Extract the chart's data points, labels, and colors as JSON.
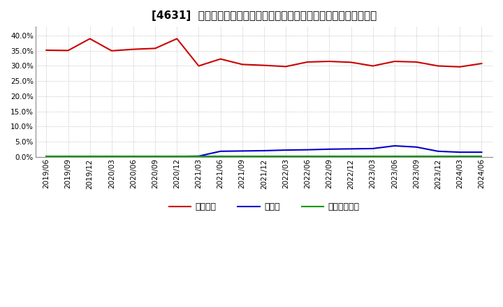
{
  "title": "[4631]  自己資本、のれん、繰延税金資産の総資産に対する比率の推移",
  "x_labels": [
    "2019/06",
    "2019/09",
    "2019/12",
    "2020/03",
    "2020/06",
    "2020/09",
    "2020/12",
    "2021/03",
    "2021/06",
    "2021/09",
    "2021/12",
    "2022/03",
    "2022/06",
    "2022/09",
    "2022/12",
    "2023/03",
    "2023/06",
    "2023/09",
    "2023/12",
    "2024/03",
    "2024/06"
  ],
  "jikoshihon": [
    35.2,
    35.1,
    39.0,
    35.0,
    35.5,
    35.8,
    39.0,
    30.0,
    32.3,
    30.5,
    30.2,
    29.8,
    31.3,
    31.5,
    31.2,
    30.0,
    31.5,
    31.3,
    30.0,
    29.7,
    30.8
  ],
  "noren": [
    0.1,
    0.1,
    0.1,
    0.1,
    0.1,
    0.1,
    0.1,
    0.2,
    1.8,
    1.9,
    2.0,
    2.2,
    2.3,
    2.5,
    2.6,
    2.7,
    3.6,
    3.2,
    1.8,
    1.5,
    1.5
  ],
  "kurinobezeikinsisan": [
    0.05,
    0.05,
    0.05,
    0.05,
    0.05,
    0.05,
    0.05,
    0.05,
    0.05,
    0.05,
    0.05,
    0.05,
    0.05,
    0.05,
    0.05,
    0.05,
    0.05,
    0.05,
    0.05,
    0.05,
    0.05
  ],
  "jikoshihon_color": "#cc0000",
  "noren_color": "#0000cc",
  "kurinobe_color": "#009900",
  "legend_labels": [
    "自己資本",
    "のれん",
    "繰延税金資産"
  ],
  "ylim": [
    0.0,
    43.0
  ],
  "ytick_vals": [
    0.0,
    5.0,
    10.0,
    15.0,
    20.0,
    25.0,
    30.0,
    35.0,
    40.0
  ],
  "ytick_labels": [
    "0.0%",
    "5.0%",
    "10.0%",
    "15.0%",
    "20.0%",
    "25.0%",
    "30.0%",
    "35.0%",
    "40.0%"
  ],
  "background_color": "#ffffff",
  "plot_bg_color": "#ffffff",
  "grid_color": "#bbbbbb",
  "title_fontsize": 11,
  "tick_fontsize": 7.5,
  "legend_fontsize": 9
}
